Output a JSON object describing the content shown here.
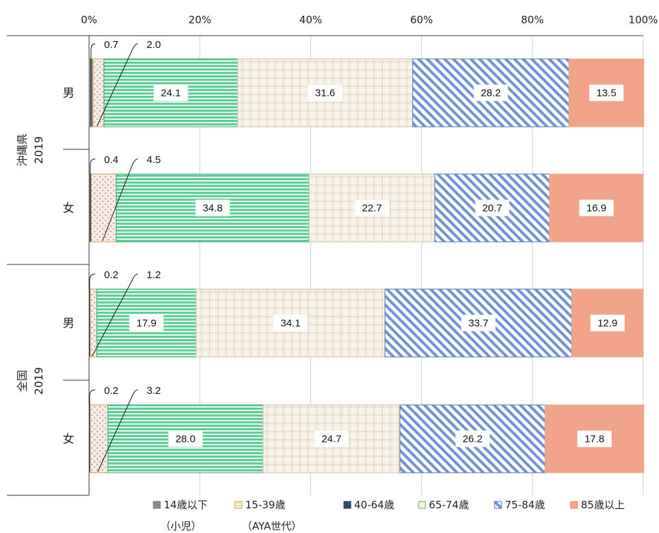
{
  "chart_data": {
    "type": "bar",
    "orientation": "horizontal",
    "stacked": "percent",
    "x_ticks": [
      "0%",
      "20%",
      "40%",
      "60%",
      "80%",
      "100%"
    ],
    "xlim": [
      0,
      100
    ],
    "legend_position": "bottom",
    "groups": [
      {
        "label": "沖縄県",
        "year": "2019",
        "categories": [
          "男",
          "女"
        ]
      },
      {
        "label": "全国",
        "year": "2019",
        "categories": [
          "男",
          "女"
        ]
      }
    ],
    "bars": [
      {
        "group": "沖縄県 2019",
        "category": "男",
        "values": [
          0.7,
          2.0,
          24.1,
          31.6,
          28.2,
          13.5
        ]
      },
      {
        "group": "沖縄県 2019",
        "category": "女",
        "values": [
          0.4,
          4.5,
          34.8,
          22.7,
          20.7,
          16.9
        ]
      },
      {
        "group": "全国 2019",
        "category": "男",
        "values": [
          0.2,
          1.2,
          17.9,
          34.1,
          33.7,
          12.9
        ]
      },
      {
        "group": "全国 2019",
        "category": "女",
        "values": [
          0.2,
          3.2,
          28.0,
          24.7,
          26.2,
          17.8
        ]
      }
    ],
    "series": [
      {
        "name": "14歳以下",
        "sublabel": "（小児）",
        "color": "#8c8c8c"
      },
      {
        "name": "15-39歳",
        "sublabel": "（AYA世代）",
        "color": "#f2e6d8"
      },
      {
        "name": "40-64歳",
        "color": "#5fcf9a"
      },
      {
        "name": "65-74歳",
        "color": "#fbf6ee"
      },
      {
        "name": "75-84歳",
        "color": "#7f9fdc"
      },
      {
        "name": "85歳以上",
        "color": "#f2a488"
      }
    ]
  }
}
